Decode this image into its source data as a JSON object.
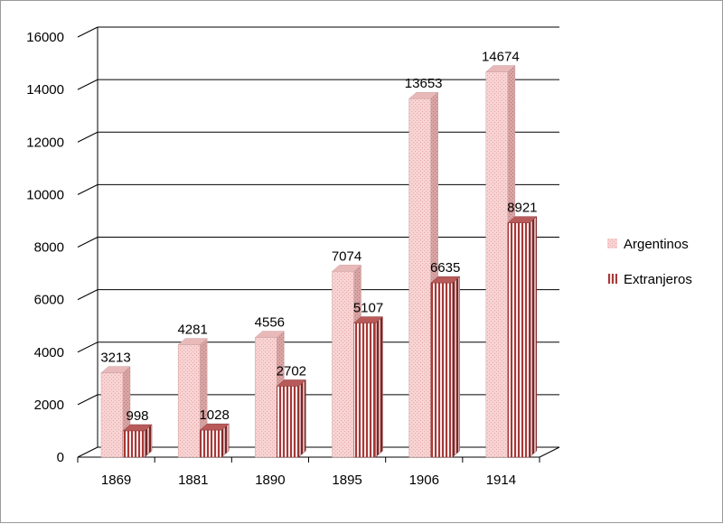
{
  "chart_data": {
    "type": "bar",
    "categories": [
      "1869",
      "1881",
      "1890",
      "1895",
      "1906",
      "1914"
    ],
    "series": [
      {
        "name": "Argentinos",
        "values": [
          3213,
          4281,
          4556,
          7074,
          13653,
          14674
        ],
        "color": "#f6c9c9"
      },
      {
        "name": "Extranjeros",
        "values": [
          998,
          1028,
          2702,
          5107,
          6635,
          8921
        ],
        "color": "#a83a3a"
      }
    ],
    "data_labels": [
      [
        "3213",
        "4281",
        "4556",
        "7074",
        "13653",
        "14674"
      ],
      [
        "998",
        "1028",
        "2702",
        "5107",
        "6635",
        "8921"
      ]
    ],
    "yticks": [
      "0",
      "2000",
      "4000",
      "6000",
      "8000",
      "10000",
      "12000",
      "14000",
      "16000"
    ],
    "ylim": [
      0,
      16000
    ],
    "grid": true,
    "legend_position": "right",
    "style": "3d-clustered-column"
  }
}
